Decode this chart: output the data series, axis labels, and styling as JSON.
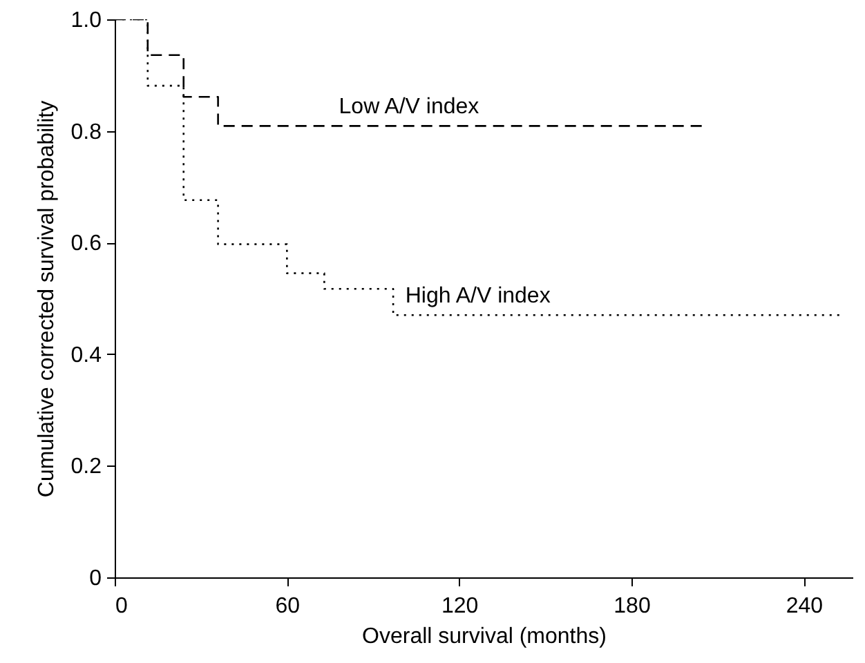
{
  "chart_data": {
    "type": "step",
    "xlabel": "Overall survival (months)",
    "ylabel": "Cumulative corrected survival probability",
    "xlim": [
      0,
      257
    ],
    "xticks": [
      0,
      60,
      120,
      180,
      240
    ],
    "ylim": [
      0,
      1
    ],
    "yticks": [
      0,
      {
        "value": 0.2,
        "label": "0.2"
      },
      {
        "value": 0.4,
        "label": "0.4"
      },
      {
        "value": 0.6,
        "label": "0.6"
      },
      {
        "value": 0.8,
        "label": "0.8"
      },
      {
        "value": 1,
        "label": "1.0"
      }
    ],
    "grid": false,
    "legend": false,
    "marker": "none",
    "series": [
      {
        "name": "Low A/V index",
        "color": "#000000",
        "line_style": "dashed",
        "x": [
          0,
          11.5,
          24,
          36,
          205
        ],
        "values": [
          1,
          0.936,
          0.861,
          0.809,
          0.809
        ]
      },
      {
        "name": "High A/V index",
        "color": "#000000",
        "line_style": "dotted",
        "x": [
          0,
          11.5,
          24,
          36,
          60,
          73,
          97,
          253
        ],
        "values": [
          1,
          0.881,
          0.676,
          0.597,
          0.545,
          0.517,
          0.47,
          0.47
        ]
      }
    ]
  }
}
